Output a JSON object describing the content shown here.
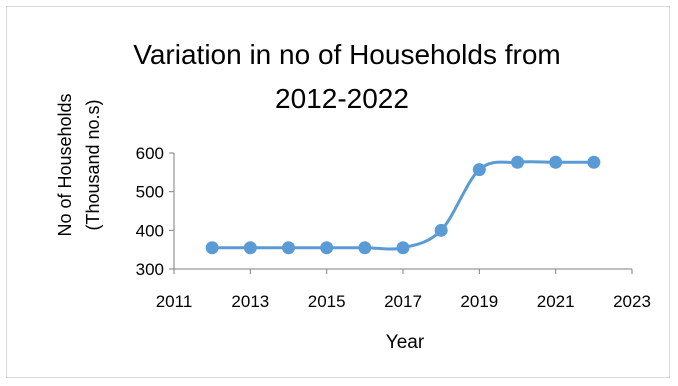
{
  "chart_data": {
    "type": "line",
    "title_lines": [
      "Variation in no of Households from",
      "2012-2022"
    ],
    "xlabel": "Year",
    "ylabel_lines": [
      "No of Households",
      "(Thousand no.s)"
    ],
    "xlim": [
      2011,
      2023
    ],
    "ylim": [
      300,
      600
    ],
    "x_ticks": [
      "2011",
      "2013",
      "2015",
      "2017",
      "2019",
      "2021",
      "2023"
    ],
    "y_ticks": [
      "300",
      "400",
      "500",
      "600"
    ],
    "grid": false,
    "legend": "none",
    "color": "#5B9BD5",
    "series": [
      {
        "x": [
          2012,
          2013,
          2014,
          2015,
          2016,
          2017,
          2018,
          2019,
          2020,
          2021,
          2022
        ],
        "values": [
          355,
          355,
          355,
          355,
          355,
          355,
          400,
          557,
          576,
          576,
          576
        ]
      }
    ]
  }
}
